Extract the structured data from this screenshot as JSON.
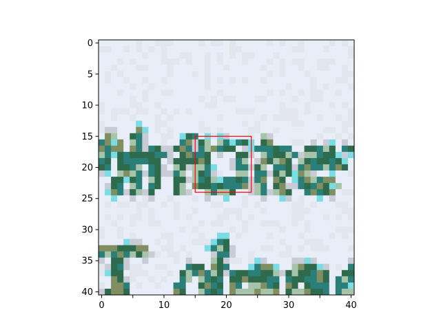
{
  "chart_data": {
    "type": "heatmap",
    "title": "",
    "xlabel": "",
    "ylabel": "",
    "grid": false,
    "xlim": [
      -0.5,
      40.5
    ],
    "ylim": [
      40.5,
      -0.5
    ],
    "x_ticks": [
      0,
      5,
      10,
      15,
      20,
      25,
      30,
      35,
      40
    ],
    "y_ticks": [
      0,
      5,
      10,
      15,
      20,
      25,
      30,
      35,
      40
    ],
    "x_tick_labels": [
      "0",
      "10",
      "20",
      "30",
      "40"
    ],
    "y_tick_labels": [
      "0",
      "5",
      "10",
      "15",
      "20",
      "25",
      "30",
      "35",
      "40"
    ],
    "x_ticks_labeled": [
      0,
      10,
      20,
      30,
      40
    ],
    "image_grid_size": [
      41,
      41
    ],
    "highlight_box": {
      "x0": 15,
      "x1": 24,
      "y0": 15,
      "y1": 24,
      "color": "#ff0000"
    },
    "colors": {
      "background": "#e9edf8",
      "background_alt": "#e3e6ee",
      "ink_dark": "#2e6b4c",
      "ink_teal": "#2a7f79",
      "ink_olive": "#7f8f62",
      "ink_light": "#a6c4aa",
      "ink_cyan": "#79dde3"
    },
    "glyph_rows": [
      {
        "y": 14,
        "x": [
          6
        ]
      },
      {
        "y": 15,
        "x": [
          1,
          2,
          5,
          6,
          14,
          15,
          26
        ]
      },
      {
        "y": 16,
        "x": [
          0,
          1,
          3,
          5,
          6,
          13,
          14,
          16,
          17,
          19,
          20,
          22,
          23,
          26,
          27
        ]
      },
      {
        "y": 17,
        "x": [
          0,
          1,
          2,
          3,
          5,
          6,
          8,
          9,
          12,
          13,
          14,
          16,
          17,
          18,
          19,
          20,
          21,
          25,
          26,
          27,
          28,
          29,
          30,
          33,
          34,
          35,
          36,
          37,
          39,
          40
        ]
      },
      {
        "y": 18,
        "x": [
          0,
          1,
          3,
          4,
          5,
          6,
          7,
          8,
          9,
          10,
          13,
          14,
          15,
          16,
          17,
          22,
          23,
          26,
          27,
          28,
          29,
          30,
          31,
          33,
          34,
          35,
          36,
          37
        ]
      },
      {
        "y": 19,
        "x": [
          0,
          1,
          3,
          4,
          5,
          6,
          7,
          8,
          9,
          12,
          13,
          14,
          15,
          16,
          17,
          22,
          23,
          26,
          27,
          28,
          29,
          30,
          32,
          33,
          34,
          35,
          36,
          37,
          38
        ]
      },
      {
        "y": 20,
        "x": [
          0,
          1,
          3,
          4,
          5,
          6,
          8,
          9,
          12,
          13,
          15,
          16,
          17,
          22,
          23,
          25,
          26,
          28,
          29,
          30,
          32,
          33,
          34,
          35,
          36,
          37,
          38,
          39
        ]
      },
      {
        "y": 21,
        "x": [
          3,
          4,
          5,
          6,
          8,
          9,
          12,
          13,
          15,
          16,
          17,
          22,
          23,
          25,
          26,
          28,
          29,
          30,
          32,
          33
        ]
      },
      {
        "y": 22,
        "x": [
          2,
          3,
          5,
          6,
          8,
          9,
          12,
          13,
          15,
          16,
          17,
          18,
          20,
          21,
          22,
          23,
          25,
          26,
          28,
          29,
          32,
          33,
          34,
          35,
          36,
          37
        ]
      },
      {
        "y": 23,
        "x": [
          2,
          3,
          5,
          6,
          8,
          9,
          12,
          13,
          15,
          16,
          17,
          18,
          19,
          20,
          21,
          22,
          23,
          25,
          26,
          28,
          29,
          32,
          33,
          34,
          35,
          36,
          38
        ]
      },
      {
        "y": 24,
        "x": [
          2,
          3,
          5,
          6,
          8,
          12,
          13,
          17,
          18,
          19,
          20,
          21,
          25,
          26,
          28,
          29,
          30,
          33,
          34,
          35,
          36,
          37
        ]
      },
      {
        "y": 32,
        "x": [
          19,
          20
        ]
      },
      {
        "y": 33,
        "x": [
          0,
          1,
          2,
          3,
          4,
          5,
          6,
          7,
          18,
          19,
          20
        ]
      },
      {
        "y": 34,
        "x": [
          0,
          1,
          2,
          3,
          4,
          5,
          6,
          7,
          19,
          20
        ]
      },
      {
        "y": 35,
        "x": [
          2,
          3,
          18,
          19
        ]
      },
      {
        "y": 36,
        "x": [
          2,
          3,
          14,
          15,
          16,
          18,
          19,
          20,
          25,
          26,
          27,
          31,
          32,
          33,
          34,
          40
        ]
      },
      {
        "y": 37,
        "x": [
          2,
          3,
          13,
          14,
          15,
          16,
          17,
          18,
          19,
          21,
          22,
          23,
          24,
          25,
          26,
          27,
          28,
          30,
          31,
          32,
          33,
          34,
          35,
          36,
          39,
          40
        ]
      },
      {
        "y": 38,
        "x": [
          2,
          3,
          13,
          14,
          16,
          17,
          18,
          19,
          21,
          22,
          23,
          24,
          25,
          26,
          27,
          28,
          30,
          31,
          32,
          33,
          34,
          35,
          36,
          38,
          39,
          40
        ]
      },
      {
        "y": 39,
        "x": [
          2,
          3,
          4,
          12,
          13,
          16,
          17,
          18,
          19,
          21,
          22,
          24,
          25,
          26,
          27,
          28,
          30,
          31,
          33,
          34,
          35,
          36,
          38,
          39
        ]
      },
      {
        "y": 40,
        "x": [
          1,
          2,
          3,
          4,
          12,
          13,
          16,
          17,
          18,
          19,
          21,
          22,
          23,
          24,
          25,
          26,
          27,
          28,
          30,
          31,
          32,
          33,
          34,
          35,
          36,
          38,
          39,
          40
        ]
      }
    ]
  }
}
